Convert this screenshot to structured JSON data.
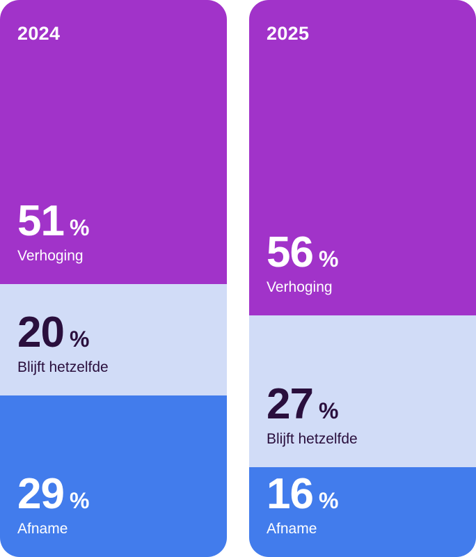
{
  "chart_data": {
    "type": "bar",
    "stacked": true,
    "orientation": "vertical",
    "unit": "%",
    "categories": [
      "2024",
      "2025"
    ],
    "series": [
      {
        "name": "Verhoging",
        "values": [
          51,
          56
        ],
        "color": "#a133c9"
      },
      {
        "name": "Blijft hetzelfde",
        "values": [
          20,
          27
        ],
        "color": "#d1dcf7"
      },
      {
        "name": "Afname",
        "values": [
          29,
          16
        ],
        "color": "#427cec"
      }
    ],
    "stack_order_top_to_bottom": [
      "Verhoging",
      "Blijft hetzelfde",
      "Afname"
    ],
    "text_colors": {
      "on_dark": "#ffffff",
      "on_light": "#2a0f3d"
    },
    "percent_sign": "%",
    "ylim": [
      0,
      100
    ],
    "title": "",
    "xlabel": "",
    "ylabel": "",
    "grid": false
  }
}
